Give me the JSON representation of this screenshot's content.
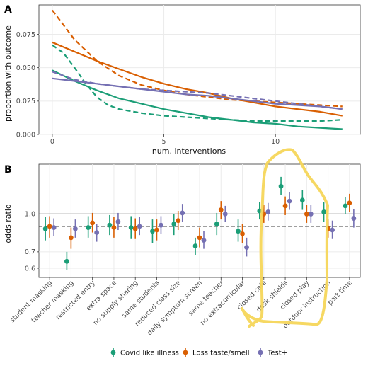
{
  "colors": {
    "covid": "#1b9e77",
    "taste": "#d95f02",
    "test": "#7570b3",
    "highlight": "#f5d65a",
    "grid": "#ebebeb"
  },
  "legend": [
    {
      "key": "covid",
      "label": "Covid like illness"
    },
    {
      "key": "taste",
      "label": "Loss taste/smell"
    },
    {
      "key": "test",
      "label": "Test+"
    }
  ],
  "chart_data": [
    {
      "panel": "A",
      "type": "line",
      "xlabel": "num. interventions",
      "ylabel": "proportion with outcome",
      "xlim": [
        -0.6,
        13.8
      ],
      "ylim": [
        0,
        0.097
      ],
      "x_ticks": [
        0,
        5,
        10
      ],
      "y_ticks": [
        0.0,
        0.025,
        0.05,
        0.075
      ],
      "y_tick_labels": [
        "0.000",
        "0.025",
        "0.050",
        "0.075"
      ],
      "grid": true,
      "series": [
        {
          "key": "taste",
          "style": "solid",
          "x": [
            0,
            1,
            2,
            3,
            4,
            5,
            6,
            7,
            8,
            9,
            10,
            11,
            12,
            13
          ],
          "y": [
            0.069,
            0.062,
            0.055,
            0.049,
            0.043,
            0.038,
            0.034,
            0.031,
            0.027,
            0.024,
            0.021,
            0.019,
            0.017,
            0.014
          ]
        },
        {
          "key": "taste",
          "style": "dashed",
          "x": [
            0,
            1,
            2,
            3,
            4,
            5,
            6,
            7,
            8,
            9,
            10,
            11,
            12,
            13
          ],
          "y": [
            0.093,
            0.071,
            0.055,
            0.044,
            0.037,
            0.033,
            0.03,
            0.028,
            0.026,
            0.025,
            0.024,
            0.023,
            0.022,
            0.021
          ]
        },
        {
          "key": "covid",
          "style": "solid",
          "x": [
            0,
            1,
            2,
            3,
            4,
            5,
            6,
            7,
            8,
            9,
            10,
            11,
            12,
            13
          ],
          "y": [
            0.048,
            0.04,
            0.033,
            0.027,
            0.023,
            0.019,
            0.016,
            0.013,
            0.011,
            0.009,
            0.008,
            0.006,
            0.005,
            0.004
          ]
        },
        {
          "key": "covid",
          "style": "dashed",
          "x": [
            0,
            0.5,
            1,
            1.5,
            2,
            2.5,
            3,
            4,
            5,
            6,
            7,
            8,
            9,
            10,
            11,
            12,
            13
          ],
          "y": [
            0.067,
            0.061,
            0.05,
            0.038,
            0.028,
            0.022,
            0.019,
            0.016,
            0.014,
            0.013,
            0.012,
            0.011,
            0.01,
            0.01,
            0.01,
            0.01,
            0.011
          ]
        },
        {
          "key": "test",
          "style": "solid",
          "x": [
            0,
            1,
            2,
            3,
            4,
            5,
            6,
            7,
            8,
            9,
            10,
            11,
            12,
            13
          ],
          "y": [
            0.042,
            0.04,
            0.038,
            0.036,
            0.034,
            0.032,
            0.03,
            0.029,
            0.027,
            0.025,
            0.023,
            0.022,
            0.021,
            0.019
          ]
        },
        {
          "key": "test",
          "style": "dashed",
          "x": [
            0,
            1,
            2,
            3,
            4,
            5,
            6,
            7,
            8,
            9,
            10,
            11,
            12,
            13
          ],
          "y": [
            0.047,
            0.041,
            0.038,
            0.036,
            0.034,
            0.033,
            0.032,
            0.031,
            0.029,
            0.027,
            0.025,
            0.023,
            0.021,
            0.019
          ]
        }
      ]
    },
    {
      "panel": "B",
      "type": "scatter",
      "ylabel": "odds ratio",
      "y_scale": "log",
      "ylim": [
        0.55,
        1.6
      ],
      "y_ticks": [
        0.6,
        0.7,
        1.0
      ],
      "y_tick_labels": [
        "0.6",
        "0.7",
        "1.0"
      ],
      "reference_lines": [
        {
          "y": 1.0,
          "style": "solid"
        },
        {
          "y": 0.89,
          "style": "dashed"
        }
      ],
      "categories": [
        "student masking",
        "teacher masking",
        "restricted entry",
        "extra space",
        "no supply sharing",
        "same students",
        "reduced class size",
        "daily symptom screen",
        "same teacher",
        "no extracurricular",
        "closed cafe",
        "desk shields",
        "closed play",
        "outdoor instruction",
        "part time"
      ],
      "series": [
        {
          "key": "covid",
          "values": [
            0.87,
            0.64,
            0.88,
            0.9,
            0.88,
            0.85,
            0.91,
            0.74,
            0.91,
            0.85,
            1.03,
            1.3,
            1.14,
            1.02,
            1.08
          ],
          "lower": [
            0.78,
            0.59,
            0.8,
            0.82,
            0.79,
            0.76,
            0.82,
            0.68,
            0.82,
            0.77,
            0.95,
            1.2,
            1.04,
            0.93,
            1.0
          ],
          "upper": [
            0.97,
            0.7,
            0.98,
            0.99,
            0.98,
            0.95,
            1.0,
            0.8,
            1.01,
            0.95,
            1.12,
            1.42,
            1.25,
            1.12,
            1.17
          ]
        },
        {
          "key": "taste",
          "values": [
            0.89,
            0.8,
            0.92,
            0.88,
            0.87,
            0.86,
            0.94,
            0.8,
            1.04,
            0.83,
            1.0,
            1.08,
            1.0,
            0.87,
            1.11
          ],
          "lower": [
            0.8,
            0.72,
            0.84,
            0.8,
            0.79,
            0.78,
            0.86,
            0.73,
            0.95,
            0.76,
            0.92,
            0.99,
            0.92,
            0.8,
            1.02
          ],
          "upper": [
            0.98,
            0.88,
            1.01,
            0.97,
            0.96,
            0.95,
            1.03,
            0.88,
            1.13,
            0.91,
            1.09,
            1.18,
            1.09,
            0.95,
            1.21
          ]
        },
        {
          "key": "test",
          "values": [
            0.88,
            0.87,
            0.84,
            0.93,
            0.89,
            0.9,
            1.01,
            0.78,
            1.0,
            0.73,
            1.02,
            1.13,
            1.0,
            0.86,
            0.96
          ],
          "lower": [
            0.81,
            0.8,
            0.77,
            0.86,
            0.82,
            0.83,
            0.93,
            0.72,
            0.93,
            0.67,
            0.94,
            1.04,
            0.92,
            0.79,
            0.88
          ],
          "upper": [
            0.96,
            0.95,
            0.91,
            1.01,
            0.97,
            0.98,
            1.1,
            0.85,
            1.08,
            0.8,
            1.11,
            1.23,
            1.09,
            0.94,
            1.05
          ]
        }
      ]
    }
  ],
  "annotations": {
    "highlight": "hand-drawn loop around closed cafe, desk shields and closed play"
  }
}
